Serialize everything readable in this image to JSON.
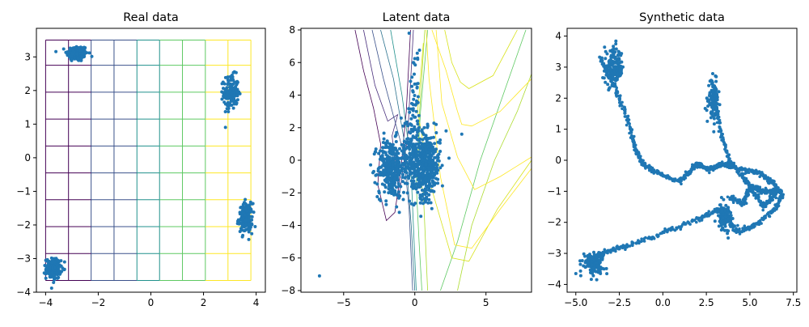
{
  "figure": {
    "num_panels": 3
  },
  "chart_data": [
    {
      "type": "scatter",
      "title": "Real data",
      "xlim": [
        -4.35,
        4.35
      ],
      "ylim": [
        -4.0,
        3.85
      ],
      "xticks": [
        -4,
        -2,
        0,
        2,
        4
      ],
      "yticks": [
        -4,
        -3,
        -2,
        -1,
        0,
        1,
        2,
        3
      ],
      "grid_overlay": {
        "x_lines": [
          -4.0,
          -3.13,
          -2.27,
          -1.4,
          -0.53,
          0.33,
          1.2,
          2.07,
          2.93,
          3.8
        ],
        "y_lines": [
          -3.65,
          -2.85,
          -2.05,
          -1.25,
          -0.45,
          0.35,
          1.15,
          1.95,
          2.75,
          3.5
        ],
        "colormap": [
          "#440154",
          "#3b528b",
          "#21918c",
          "#5ec962",
          "#fde725"
        ]
      },
      "series": [
        {
          "color": "#1f77b4",
          "clusters": [
            {
              "center": [
                -2.8,
                3.1
              ],
              "spread": [
                0.2,
                0.12
              ],
              "n": 170
            },
            {
              "center": [
                3.05,
                1.95
              ],
              "spread": [
                0.14,
                0.25
              ],
              "n": 170
            },
            {
              "center": [
                3.6,
                -1.8
              ],
              "spread": [
                0.13,
                0.22
              ],
              "n": 170
            },
            {
              "center": [
                -3.7,
                -3.3
              ],
              "spread": [
                0.14,
                0.15
              ],
              "n": 170
            }
          ]
        }
      ]
    },
    {
      "type": "scatter",
      "title": "Latent data",
      "xlim": [
        -8.0,
        8.2
      ],
      "ylim": [
        -8.1,
        8.1
      ],
      "xticks": [
        -5,
        0,
        5
      ],
      "yticks": [
        -8,
        -6,
        -4,
        -2,
        0,
        2,
        4,
        6,
        8
      ],
      "contours": {
        "colormap": [
          "#440154",
          "#3b528b",
          "#21918c",
          "#5ec962",
          "#fde725"
        ],
        "levels": [
          {
            "color": "#440154",
            "points": [
              [
                -4.2,
                8.0
              ],
              [
                -3.6,
                5.5
              ],
              [
                -2.9,
                3.2
              ],
              [
                -2.4,
                1.0
              ],
              [
                -2.6,
                -1.5
              ],
              [
                -2.0,
                -3.7
              ],
              [
                -1.4,
                -3.2
              ],
              [
                -1.0,
                -0.8
              ],
              [
                -0.6,
                3.0
              ],
              [
                -0.3,
                8.0
              ]
            ]
          },
          {
            "color": "#472d7b",
            "points": [
              [
                -3.6,
                8.0
              ],
              [
                -2.8,
                4.6
              ],
              [
                -1.9,
                2.4
              ],
              [
                -1.2,
                2.8
              ],
              [
                -1.6,
                1.5
              ],
              [
                -1.1,
                -2.2
              ],
              [
                -0.5,
                1.5
              ],
              [
                -0.1,
                8.0
              ]
            ]
          },
          {
            "color": "#3b528b",
            "points": [
              [
                -3.0,
                8.0
              ],
              [
                -2.2,
                5.0
              ],
              [
                -1.4,
                2.4
              ],
              [
                -0.8,
                0.5
              ],
              [
                -0.4,
                -3.0
              ],
              [
                -0.15,
                -8.0
              ]
            ]
          },
          {
            "color": "#2c728e",
            "points": [
              [
                -2.4,
                8.0
              ],
              [
                -1.5,
                5.0
              ],
              [
                -0.7,
                1.0
              ],
              [
                -0.25,
                -4.0
              ],
              [
                0.0,
                -8.0
              ]
            ]
          },
          {
            "color": "#21918c",
            "points": [
              [
                -1.7,
                8.0
              ],
              [
                -0.9,
                4.0
              ],
              [
                -0.3,
                0.0
              ],
              [
                0.1,
                -8.0
              ]
            ]
          },
          {
            "color": "#5ec962",
            "points": [
              [
                0.9,
                8.0
              ],
              [
                0.4,
                3.0
              ],
              [
                0.1,
                -1.5
              ],
              [
                0.3,
                -5.0
              ],
              [
                0.5,
                -8.0
              ]
            ]
          },
          {
            "color": "#5ec962",
            "points": [
              [
                7.8,
                8.0
              ],
              [
                6.2,
                4.0
              ],
              [
                4.6,
                0.0
              ],
              [
                3.0,
                -5.0
              ],
              [
                1.8,
                -8.0
              ]
            ]
          },
          {
            "color": "#addc30",
            "points": [
              [
                0.7,
                8.0
              ],
              [
                0.3,
                2.5
              ],
              [
                0.2,
                -0.5
              ],
              [
                0.6,
                -2.0
              ],
              [
                0.9,
                -8.0
              ]
            ]
          },
          {
            "color": "#addc30",
            "points": [
              [
                8.2,
                5.3
              ],
              [
                7.2,
                3.0
              ],
              [
                5.6,
                0.0
              ],
              [
                4.0,
                -4.0
              ],
              [
                3.0,
                -8.0
              ]
            ]
          },
          {
            "color": "#d8e219",
            "points": [
              [
                0.6,
                7.2
              ],
              [
                0.2,
                3.0
              ],
              [
                1.1,
                -1.5
              ],
              [
                2.6,
                -6.0
              ],
              [
                3.8,
                -6.2
              ],
              [
                5.8,
                -3.0
              ],
              [
                8.2,
                0.0
              ]
            ]
          },
          {
            "color": "#fde725",
            "points": [
              [
                0.8,
                8.0
              ],
              [
                1.0,
                5.0
              ],
              [
                1.8,
                -1.0
              ],
              [
                2.8,
                -5.2
              ],
              [
                4.0,
                -5.4
              ],
              [
                6.0,
                -3.0
              ],
              [
                8.2,
                -0.5
              ]
            ]
          },
          {
            "color": "#fde725",
            "points": [
              [
                1.5,
                8.0
              ],
              [
                1.9,
                3.5
              ],
              [
                3.0,
                0.2
              ],
              [
                4.2,
                -1.8
              ],
              [
                6.0,
                -1.0
              ],
              [
                8.2,
                0.2
              ]
            ]
          },
          {
            "color": "#fde725",
            "points": [
              [
                1.2,
                8.0
              ],
              [
                2.2,
                5.5
              ],
              [
                3.0,
                3.0
              ],
              [
                3.3,
                2.2
              ],
              [
                4.0,
                2.1
              ],
              [
                6.0,
                3.0
              ],
              [
                8.2,
                5.0
              ]
            ]
          },
          {
            "color": "#d8e219",
            "points": [
              [
                2.1,
                8.0
              ],
              [
                2.6,
                6.0
              ],
              [
                3.2,
                4.8
              ],
              [
                3.8,
                4.4
              ],
              [
                5.5,
                5.2
              ],
              [
                7.2,
                8.0
              ]
            ]
          }
        ]
      },
      "series": [
        {
          "color": "#1f77b4",
          "clusters": [
            {
              "center": [
                -1.7,
                -0.5
              ],
              "spread": [
                0.45,
                0.9
              ],
              "n": 320
            },
            {
              "center": [
                0.8,
                -0.3
              ],
              "spread": [
                0.5,
                1.0
              ],
              "n": 420
            },
            {
              "center": [
                -0.3,
                0.3
              ],
              "spread": [
                0.35,
                1.3
              ],
              "n": 160
            },
            {
              "center": [
                0.0,
                3.5
              ],
              "spread": [
                0.2,
                1.8
              ],
              "n": 45
            }
          ],
          "points": [
            [
              3.3,
              1.6
            ],
            [
              1.5,
              2.2
            ],
            [
              -6.7,
              -7.1
            ],
            [
              -0.4,
              7.8
            ],
            [
              0.2,
              6.2
            ],
            [
              -0.2,
              5.1
            ],
            [
              2.2,
              1.8
            ],
            [
              -2.5,
              -2.0
            ]
          ]
        }
      ]
    },
    {
      "type": "line",
      "title": "Synthetic data",
      "xlim": [
        -5.5,
        7.7
      ],
      "ylim": [
        -4.25,
        4.25
      ],
      "xticks": [
        -5.0,
        -2.5,
        0.0,
        2.5,
        5.0,
        7.5
      ],
      "xtick_labels": [
        "−5.0",
        "−2.5",
        "0.0",
        "2.5",
        "5.0",
        "7.5"
      ],
      "yticks": [
        -4,
        -3,
        -2,
        -1,
        0,
        1,
        2,
        3,
        4
      ],
      "series": [
        {
          "color": "#1f77b4",
          "curves": [
            [
              [
                -3.5,
                3.2
              ],
              [
                -2.8,
                2.4
              ],
              [
                -2.0,
                1.3
              ],
              [
                -1.6,
                0.4
              ],
              [
                -1.2,
                -0.1
              ],
              [
                -0.3,
                -0.4
              ],
              [
                0.9,
                -0.7
              ],
              [
                1.5,
                -0.4
              ],
              [
                2.0,
                -0.1
              ],
              [
                2.6,
                -0.3
              ],
              [
                3.5,
                -0.1
              ],
              [
                4.5,
                -0.3
              ],
              [
                5.5,
                -0.4
              ],
              [
                6.3,
                -0.7
              ],
              [
                6.9,
                -1.1
              ],
              [
                6.4,
                -1.6
              ],
              [
                5.3,
                -2.1
              ],
              [
                4.3,
                -2.3
              ],
              [
                3.5,
                -1.8
              ],
              [
                3.2,
                -1.6
              ],
              [
                2.0,
                -1.9
              ],
              [
                0.0,
                -2.35
              ],
              [
                -2.0,
                -2.75
              ],
              [
                -3.3,
                -2.95
              ],
              [
                -4.1,
                -3.2
              ]
            ],
            [
              [
                3.0,
                2.1
              ],
              [
                3.3,
                1.0
              ],
              [
                3.8,
                0.0
              ],
              [
                4.8,
                -0.7
              ],
              [
                5.6,
                -1.0
              ],
              [
                6.6,
                -1.0
              ],
              [
                5.8,
                -1.5
              ],
              [
                5.0,
                -0.9
              ],
              [
                4.6,
                -1.4
              ],
              [
                3.8,
                -1.2
              ]
            ]
          ],
          "clusters": [
            {
              "center": [
                -2.8,
                2.95
              ],
              "spread": [
                0.28,
                0.3
              ],
              "n": 160
            },
            {
              "center": [
                2.9,
                1.95
              ],
              "spread": [
                0.14,
                0.3
              ],
              "n": 130
            },
            {
              "center": [
                3.55,
                -1.8
              ],
              "spread": [
                0.2,
                0.2
              ],
              "n": 110
            },
            {
              "center": [
                -4.0,
                -3.3
              ],
              "spread": [
                0.3,
                0.17
              ],
              "n": 130
            }
          ],
          "points": [
            [
              -5.0,
              -3.65
            ],
            [
              -2.7,
              3.75
            ]
          ]
        }
      ]
    }
  ]
}
